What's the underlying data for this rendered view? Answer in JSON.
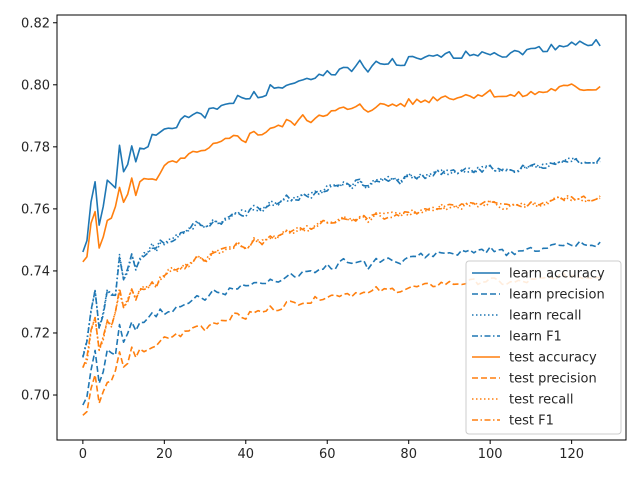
{
  "chart_data": {
    "type": "line",
    "title": "",
    "xlabel": "",
    "ylabel": "",
    "xlim": [
      -6.35,
      133.35
    ],
    "ylim": [
      0.6855,
      0.8225
    ],
    "x_ticks": [
      0,
      20,
      40,
      60,
      80,
      100,
      120
    ],
    "x_tick_labels": [
      "0",
      "20",
      "40",
      "60",
      "80",
      "100",
      "120"
    ],
    "y_ticks": [
      0.7,
      0.72,
      0.74,
      0.76,
      0.78,
      0.8,
      0.82
    ],
    "y_tick_labels": [
      "0.70",
      "0.72",
      "0.74",
      "0.76",
      "0.78",
      "0.80",
      "0.82"
    ],
    "grid": false,
    "legend_position": "lower-right",
    "x": {
      "start": 0,
      "end": 127,
      "step": 1
    },
    "curve_shapes": {
      "learn": [
        [
          0,
          0
        ],
        [
          1,
          0.06
        ],
        [
          2,
          0.22
        ],
        [
          3,
          0.32
        ],
        [
          4,
          0.14
        ],
        [
          5,
          0.2
        ],
        [
          6,
          0.33
        ],
        [
          7,
          0.31
        ],
        [
          8,
          0.3
        ],
        [
          9,
          0.49
        ],
        [
          10,
          0.37
        ],
        [
          11,
          0.42
        ],
        [
          12,
          0.5
        ],
        [
          13,
          0.43
        ],
        [
          14,
          0.49
        ],
        [
          15,
          0.5
        ],
        [
          16,
          0.51
        ],
        [
          17,
          0.55
        ],
        [
          18,
          0.53
        ],
        [
          19,
          0.57
        ],
        [
          20,
          0.56
        ],
        [
          22,
          0.58
        ],
        [
          24,
          0.61
        ],
        [
          26,
          0.63
        ],
        [
          28,
          0.66
        ],
        [
          30,
          0.64
        ],
        [
          32,
          0.68
        ],
        [
          34,
          0.67
        ],
        [
          36,
          0.7
        ],
        [
          38,
          0.72
        ],
        [
          40,
          0.71
        ],
        [
          42,
          0.74
        ],
        [
          44,
          0.73
        ],
        [
          46,
          0.77
        ],
        [
          48,
          0.76
        ],
        [
          50,
          0.79
        ],
        [
          52,
          0.78
        ],
        [
          54,
          0.8
        ],
        [
          56,
          0.8
        ],
        [
          58,
          0.82
        ],
        [
          60,
          0.84
        ],
        [
          62,
          0.84
        ],
        [
          64,
          0.87
        ],
        [
          66,
          0.85
        ],
        [
          68,
          0.88
        ],
        [
          70,
          0.84
        ],
        [
          72,
          0.88
        ],
        [
          74,
          0.88
        ],
        [
          76,
          0.89
        ],
        [
          78,
          0.87
        ],
        [
          80,
          0.9
        ],
        [
          84,
          0.9
        ],
        [
          88,
          0.92
        ],
        [
          92,
          0.92
        ],
        [
          96,
          0.93
        ],
        [
          100,
          0.94
        ],
        [
          104,
          0.92
        ],
        [
          108,
          0.94
        ],
        [
          112,
          0.95
        ],
        [
          116,
          0.96
        ],
        [
          120,
          0.98
        ],
        [
          124,
          0.97
        ],
        [
          127,
          0.98
        ]
      ],
      "test": [
        [
          0,
          0
        ],
        [
          1,
          0.04
        ],
        [
          2,
          0.2
        ],
        [
          3,
          0.27
        ],
        [
          4,
          0.09
        ],
        [
          5,
          0.16
        ],
        [
          6,
          0.24
        ],
        [
          7,
          0.22
        ],
        [
          8,
          0.3
        ],
        [
          9,
          0.41
        ],
        [
          10,
          0.31
        ],
        [
          11,
          0.36
        ],
        [
          12,
          0.43
        ],
        [
          13,
          0.37
        ],
        [
          14,
          0.42
        ],
        [
          15,
          0.43
        ],
        [
          16,
          0.44
        ],
        [
          17,
          0.45
        ],
        [
          18,
          0.44
        ],
        [
          19,
          0.48
        ],
        [
          20,
          0.5
        ],
        [
          22,
          0.52
        ],
        [
          24,
          0.53
        ],
        [
          26,
          0.55
        ],
        [
          28,
          0.59
        ],
        [
          30,
          0.57
        ],
        [
          32,
          0.61
        ],
        [
          34,
          0.62
        ],
        [
          36,
          0.64
        ],
        [
          38,
          0.66
        ],
        [
          40,
          0.64
        ],
        [
          42,
          0.68
        ],
        [
          44,
          0.67
        ],
        [
          46,
          0.7
        ],
        [
          48,
          0.7
        ],
        [
          50,
          0.73
        ],
        [
          52,
          0.73
        ],
        [
          54,
          0.75
        ],
        [
          56,
          0.74
        ],
        [
          58,
          0.77
        ],
        [
          60,
          0.78
        ],
        [
          62,
          0.78
        ],
        [
          64,
          0.8
        ],
        [
          66,
          0.79
        ],
        [
          68,
          0.81
        ],
        [
          70,
          0.79
        ],
        [
          72,
          0.82
        ],
        [
          74,
          0.81
        ],
        [
          76,
          0.82
        ],
        [
          78,
          0.82
        ],
        [
          80,
          0.83
        ],
        [
          84,
          0.84
        ],
        [
          88,
          0.86
        ],
        [
          92,
          0.86
        ],
        [
          96,
          0.87
        ],
        [
          100,
          0.88
        ],
        [
          104,
          0.86
        ],
        [
          108,
          0.87
        ],
        [
          112,
          0.88
        ],
        [
          116,
          0.9
        ],
        [
          120,
          0.91
        ],
        [
          124,
          0.9
        ],
        [
          127,
          0.91
        ]
      ]
    },
    "series": [
      {
        "name": "learn accuracy",
        "color": "#1f77b4",
        "dash": "solid",
        "shape": "learn",
        "y0": 0.746,
        "y1": 0.815,
        "jitter": 0.0012,
        "seed": 1
      },
      {
        "name": "learn precision",
        "color": "#1f77b4",
        "dash": "dashed",
        "shape": "learn",
        "y0": 0.697,
        "y1": 0.75,
        "jitter": 0.001,
        "seed": 2
      },
      {
        "name": "learn recall",
        "color": "#1f77b4",
        "dash": "dotted",
        "shape": "learn",
        "y0": 0.713,
        "y1": 0.777,
        "jitter": 0.001,
        "seed": 3
      },
      {
        "name": "learn F1",
        "color": "#1f77b4",
        "dash": "dashdot",
        "shape": "learn",
        "y0": 0.713,
        "y1": 0.777,
        "jitter": 0.001,
        "seed": 4
      },
      {
        "name": "test accuracy",
        "color": "#ff7f0e",
        "dash": "solid",
        "shape": "test",
        "y0": 0.742,
        "y1": 0.805,
        "jitter": 0.0012,
        "seed": 5
      },
      {
        "name": "test precision",
        "color": "#ff7f0e",
        "dash": "dashed",
        "shape": "test",
        "y0": 0.693,
        "y1": 0.743,
        "jitter": 0.001,
        "seed": 6
      },
      {
        "name": "test recall",
        "color": "#ff7f0e",
        "dash": "dotted",
        "shape": "test",
        "y0": 0.709,
        "y1": 0.769,
        "jitter": 0.001,
        "seed": 7
      },
      {
        "name": "test F1",
        "color": "#ff7f0e",
        "dash": "dashdot",
        "shape": "test",
        "y0": 0.709,
        "y1": 0.769,
        "jitter": 0.001,
        "seed": 8
      }
    ]
  }
}
